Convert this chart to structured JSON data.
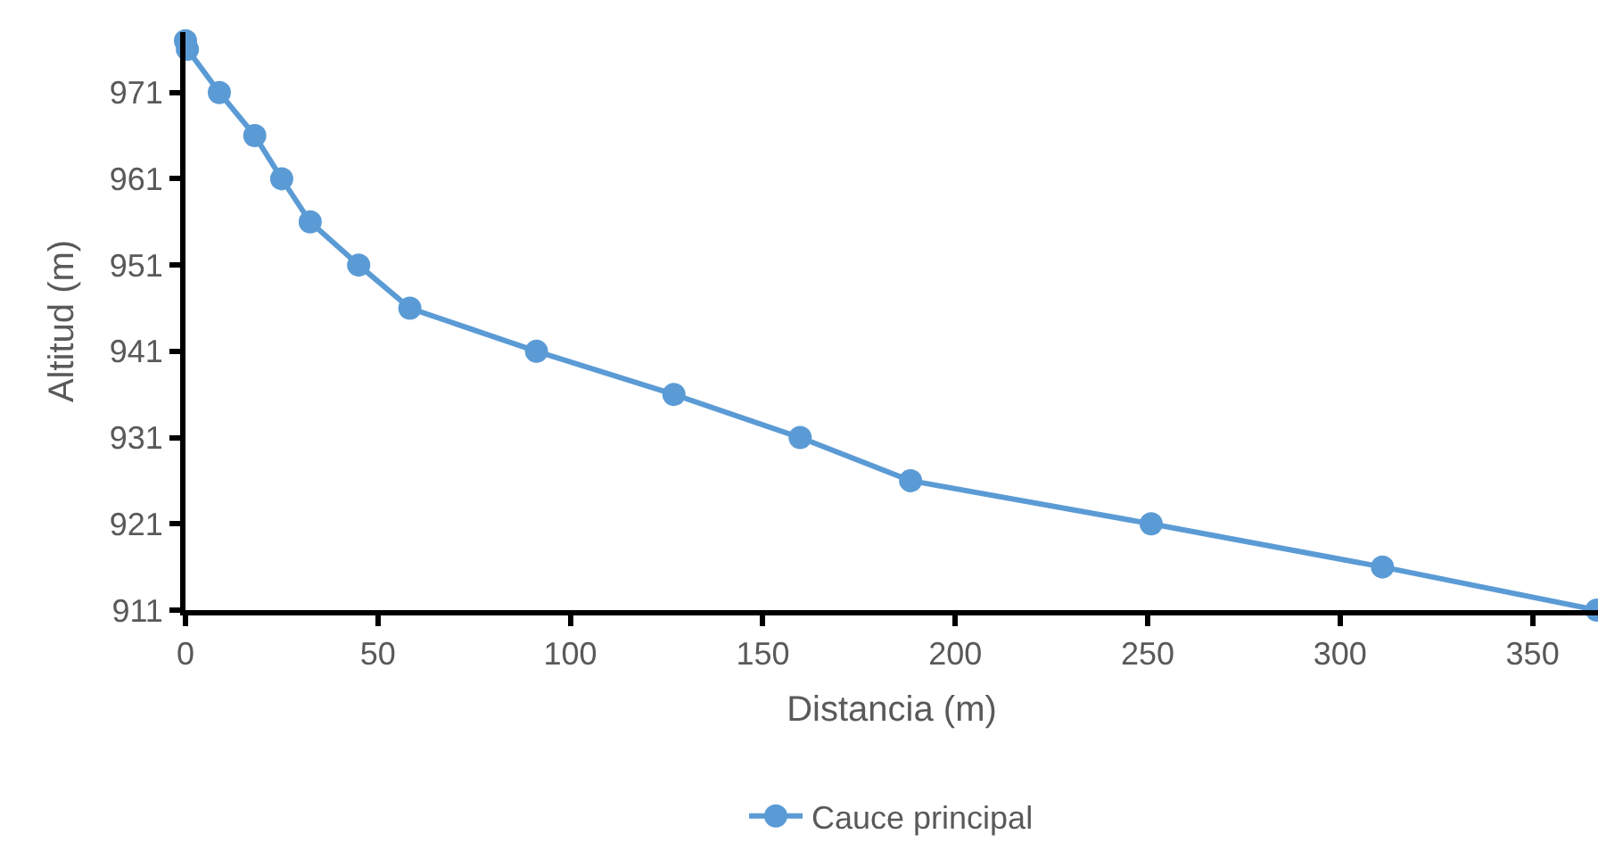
{
  "chart_data": {
    "type": "line",
    "xlabel": "Distancia (m)",
    "ylabel": "Altitud (m)",
    "xlim": [
      0,
      367
    ],
    "xticks": [
      0,
      50,
      100,
      150,
      200,
      250,
      300,
      350
    ],
    "ylim": [
      911,
      978
    ],
    "yticks": [
      911,
      921,
      931,
      941,
      951,
      961,
      971
    ],
    "legend": "bottom",
    "marker": "circle",
    "line_style": "solid",
    "series": [
      {
        "name": "Cauce principal",
        "color": "#5b9bd5",
        "x": [
          0,
          0.5,
          8.8,
          18,
          25,
          32.4,
          45,
          58.3,
          91.2,
          126.9,
          159.7,
          188.4,
          250.9,
          311,
          366.7
        ],
        "values": [
          977,
          976,
          971,
          966,
          961,
          956,
          951,
          946,
          941,
          936,
          931,
          926,
          921,
          916,
          911
        ]
      }
    ]
  }
}
